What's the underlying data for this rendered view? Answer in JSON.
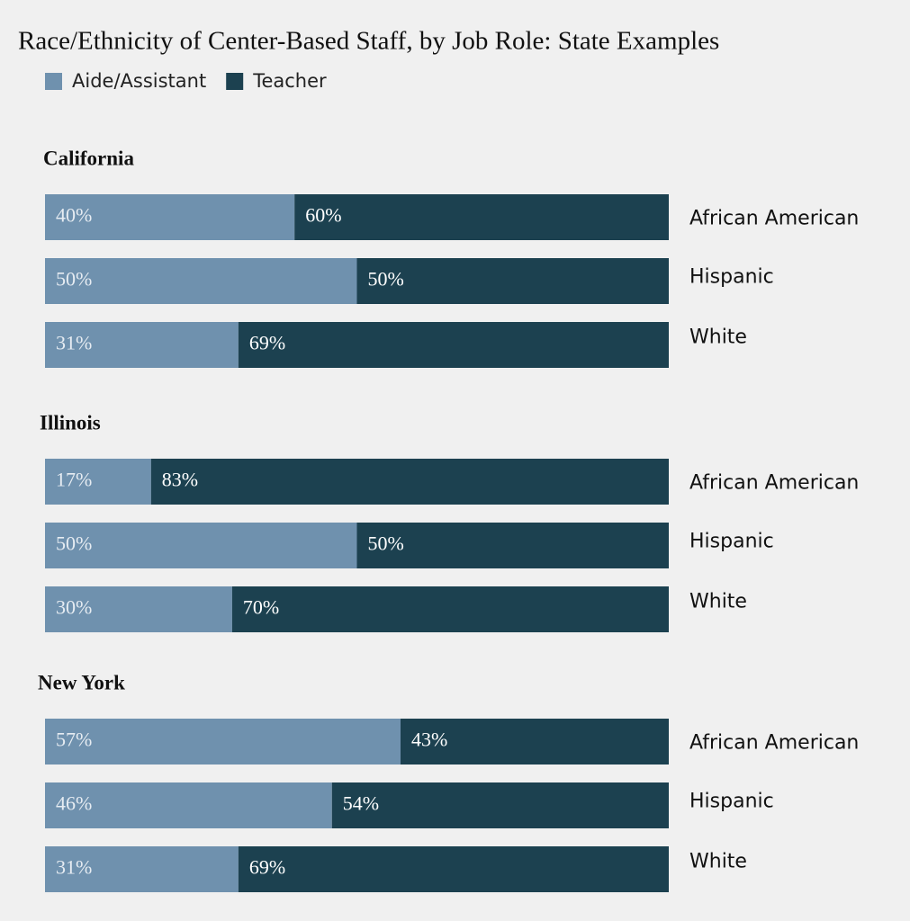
{
  "title": "Race/Ethnicity of Center-Based Staff, by Job Role: State Examples",
  "chart_data": [
    {
      "type": "stacked-barh",
      "title": "California",
      "xlim": [
        0,
        100
      ],
      "categories": [
        "African American",
        "Hispanic",
        "White"
      ],
      "series": [
        {
          "name": "Aide/Assistant",
          "color": "#6f91ae",
          "values": [
            40,
            50,
            31
          ],
          "value_labels": [
            "40%",
            "50%",
            "31%"
          ]
        },
        {
          "name": "Teacher",
          "color": "#1c4150",
          "values": [
            60,
            50,
            69
          ],
          "value_labels": [
            "60%",
            "50%",
            "69%"
          ]
        }
      ]
    },
    {
      "type": "stacked-barh",
      "title": "Illinois",
      "xlim": [
        0,
        100
      ],
      "categories": [
        "African American",
        "Hispanic",
        "White"
      ],
      "series": [
        {
          "name": "Aide/Assistant",
          "color": "#6f91ae",
          "values": [
            17,
            50,
            30
          ],
          "value_labels": [
            "17%",
            "50%",
            "30%"
          ]
        },
        {
          "name": "Teacher",
          "color": "#1c4150",
          "values": [
            83,
            50,
            70
          ],
          "value_labels": [
            "83%",
            "50%",
            "70%"
          ]
        }
      ]
    },
    {
      "type": "stacked-barh",
      "title": "New York",
      "xlim": [
        0,
        100
      ],
      "categories": [
        "African American",
        "Hispanic",
        "White"
      ],
      "series": [
        {
          "name": "Aide/Assistant",
          "color": "#6f91ae",
          "values": [
            57,
            46,
            31
          ],
          "value_labels": [
            "57%",
            "46%",
            "31%"
          ]
        },
        {
          "name": "Teacher",
          "color": "#1c4150",
          "values": [
            43,
            54,
            69
          ],
          "value_labels": [
            "43%",
            "54%",
            "69%"
          ]
        }
      ]
    }
  ]
}
